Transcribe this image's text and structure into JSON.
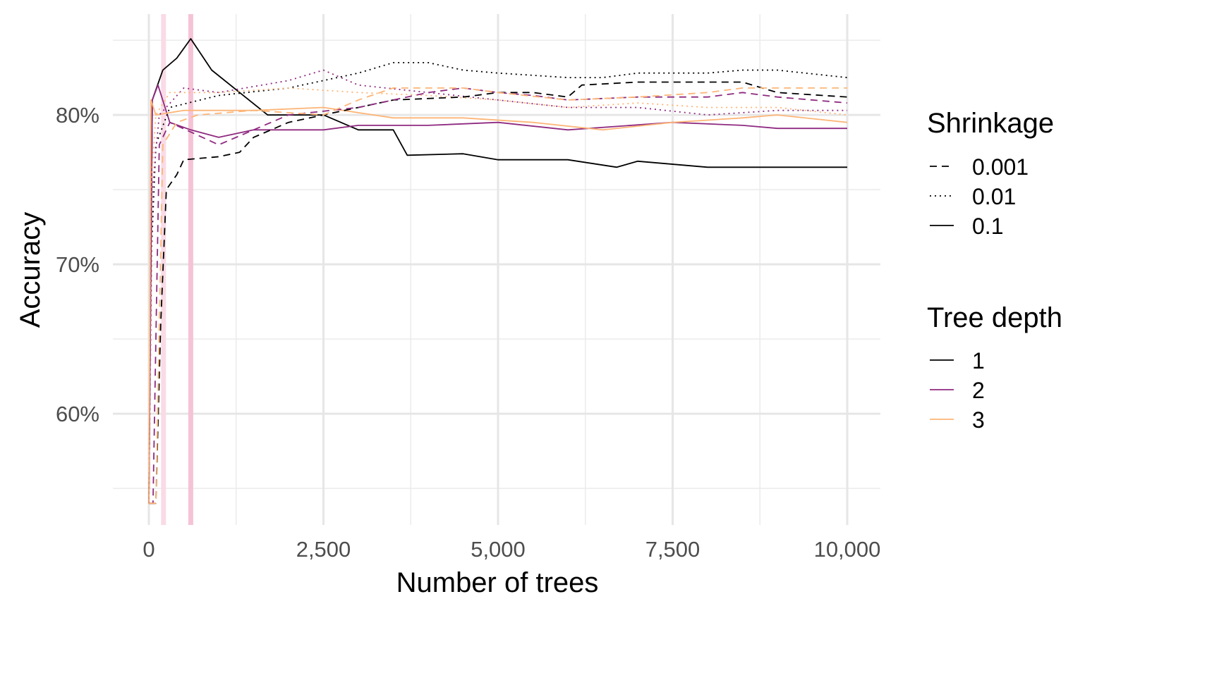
{
  "chart_data": {
    "type": "line",
    "title": "",
    "xlabel": "Number of trees",
    "ylabel": "Accuracy",
    "xlim": [
      -1000,
      10480
    ],
    "ylim": [
      52.55,
      86.75
    ],
    "x_ticks": [
      {
        "v": 0,
        "label": "0"
      },
      {
        "v": 2500,
        "label": "2,500"
      },
      {
        "v": 5000,
        "label": "5,000"
      },
      {
        "v": 7500,
        "label": "7,500"
      },
      {
        "v": 10000,
        "label": "10,000"
      }
    ],
    "x_minor": [
      1250,
      3750,
      6250,
      8750
    ],
    "y_ticks": [
      {
        "v": 60,
        "label": "60%"
      },
      {
        "v": 70,
        "label": "70%"
      },
      {
        "v": 80,
        "label": "80%"
      }
    ],
    "y_minor": [
      55,
      65,
      75,
      85
    ],
    "grid": true,
    "highlight_x": [
      {
        "v": 210,
        "color": "#f9dbe6"
      },
      {
        "v": 600,
        "color": "#f6c3d6"
      }
    ],
    "colors": {
      "1": "#000000",
      "2": "#8f2a80",
      "3": "#fdb577"
    },
    "dashes": {
      "0.001": "10,7",
      "0.01": "2,5",
      "0.1": ""
    },
    "legend": {
      "placement": "right",
      "shrinkage": {
        "title": "Shrinkage",
        "items": [
          "0.001",
          "0.01",
          "0.1"
        ]
      },
      "depth": {
        "title": "Tree depth",
        "items": [
          "1",
          "2",
          "3"
        ]
      }
    },
    "series": [
      {
        "shrinkage": "0.1",
        "depth": "1",
        "x": [
          0,
          50,
          200,
          400,
          600,
          900,
          1300,
          1700,
          2500,
          3000,
          3500,
          3700,
          4500,
          5000,
          6000,
          6700,
          7000,
          8000,
          9000,
          10000
        ],
        "y": [
          54,
          81,
          83,
          83.8,
          85.1,
          83,
          81.5,
          80,
          80,
          79,
          79,
          77.3,
          77.4,
          77,
          77,
          76.5,
          76.9,
          76.5,
          76.5,
          76.5
        ]
      },
      {
        "shrinkage": "0.1",
        "depth": "2",
        "x": [
          0,
          50,
          130,
          300,
          600,
          1000,
          1500,
          2000,
          2500,
          3000,
          4000,
          5000,
          6000,
          7500,
          8500,
          9000,
          10000
        ],
        "y": [
          54,
          81,
          82,
          79.5,
          79,
          78.5,
          79,
          79,
          79,
          79.3,
          79.3,
          79.5,
          79,
          79.5,
          79.3,
          79.1,
          79.1
        ]
      },
      {
        "shrinkage": "0.1",
        "depth": "3",
        "x": [
          0,
          30,
          100,
          500,
          1500,
          2500,
          3500,
          4500,
          5500,
          6500,
          7500,
          8500,
          9000,
          10000
        ],
        "y": [
          54,
          81,
          80,
          80.3,
          80.3,
          80.5,
          79.8,
          79.8,
          79.5,
          79,
          79.5,
          79.8,
          80,
          79.5
        ]
      },
      {
        "shrinkage": "0.01",
        "depth": "1",
        "x": [
          0,
          30,
          100,
          300,
          1000,
          2000,
          3000,
          3500,
          4000,
          4500,
          5000,
          6000,
          6500,
          7000,
          8000,
          8500,
          9000,
          10000
        ],
        "y": [
          54,
          70,
          78,
          80.5,
          81.3,
          81.8,
          82.8,
          83.5,
          83.5,
          83,
          82.8,
          82.5,
          82.5,
          82.8,
          82.8,
          83,
          83,
          82.5
        ]
      },
      {
        "shrinkage": "0.01",
        "depth": "2",
        "x": [
          0,
          50,
          150,
          500,
          1000,
          2000,
          2500,
          3000,
          4000,
          5000,
          6000,
          7000,
          8000,
          9000,
          10000
        ],
        "y": [
          54,
          75,
          80,
          81.8,
          81.5,
          82.3,
          83,
          82,
          81.5,
          81,
          80.5,
          80.5,
          80,
          80.3,
          80.3
        ]
      },
      {
        "shrinkage": "0.01",
        "depth": "3",
        "x": [
          0,
          30,
          100,
          300,
          1000,
          2000,
          3000,
          4000,
          5000,
          6000,
          7000,
          8000,
          9000,
          10000
        ],
        "y": [
          54,
          75,
          80,
          81.5,
          81.5,
          81.8,
          81.5,
          81.3,
          81,
          80.5,
          80.8,
          80.5,
          80.5,
          80
        ]
      },
      {
        "shrinkage": "0.001",
        "depth": "1",
        "x": [
          0,
          100,
          170,
          250,
          400,
          500,
          1000,
          1300,
          1500,
          2000,
          2500,
          3000,
          3500,
          4500,
          5000,
          5500,
          6000,
          6200,
          7000,
          8500,
          9000,
          10000
        ],
        "y": [
          54,
          54,
          66,
          75,
          76,
          77,
          77.2,
          77.5,
          78.5,
          79.5,
          80,
          80.5,
          81,
          81.2,
          81.5,
          81.5,
          81.2,
          82,
          82.2,
          82.2,
          81.5,
          81.2
        ]
      },
      {
        "shrinkage": "0.001",
        "depth": "2",
        "x": [
          0,
          60,
          150,
          300,
          1000,
          1500,
          2000,
          3000,
          3500,
          4000,
          4500,
          5000,
          5500,
          6000,
          7000,
          8000,
          8500,
          9000,
          10000
        ],
        "y": [
          54,
          54,
          78,
          79.5,
          78,
          79,
          80,
          80.5,
          81,
          81.5,
          81.8,
          81.5,
          81.3,
          81,
          81.2,
          81.2,
          81.5,
          81.2,
          80.8
        ]
      },
      {
        "shrinkage": "0.001",
        "depth": "3",
        "x": [
          0,
          100,
          200,
          400,
          700,
          1500,
          2500,
          3000,
          3500,
          4500,
          5000,
          6000,
          7000,
          8000,
          8500,
          10000
        ],
        "y": [
          54,
          54,
          78,
          79.5,
          80,
          80.3,
          80,
          81,
          81.8,
          81.8,
          81.5,
          81,
          81.2,
          81.5,
          81.8,
          81.8
        ]
      }
    ]
  }
}
